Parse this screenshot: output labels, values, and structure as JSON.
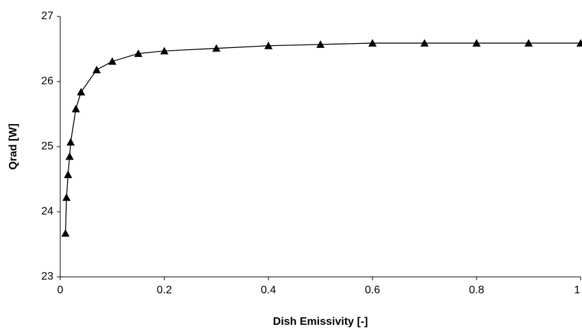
{
  "chart_data": {
    "type": "line",
    "x_label": "Dish  Emissivity [-]",
    "y_label": "Qrad [W]",
    "x": [
      0.01,
      0.012,
      0.015,
      0.018,
      0.02,
      0.03,
      0.04,
      0.07,
      0.1,
      0.15,
      0.2,
      0.3,
      0.4,
      0.5,
      0.6,
      0.7,
      0.8,
      0.9,
      1.0
    ],
    "series": [
      {
        "color": "#000000",
        "marker": "triangle",
        "values": [
          23.67,
          24.22,
          24.57,
          24.85,
          25.07,
          25.58,
          25.84,
          26.18,
          26.31,
          26.43,
          26.47,
          26.51,
          26.55,
          26.57,
          26.59,
          26.59,
          26.59,
          26.59,
          26.59
        ]
      }
    ],
    "xlim": [
      0,
      1
    ],
    "xticks": [
      0,
      0.2,
      0.4,
      0.6,
      0.8,
      1
    ],
    "ylim": [
      23,
      27
    ],
    "yticks": [
      23,
      24,
      25,
      26,
      27
    ],
    "grid": false
  }
}
